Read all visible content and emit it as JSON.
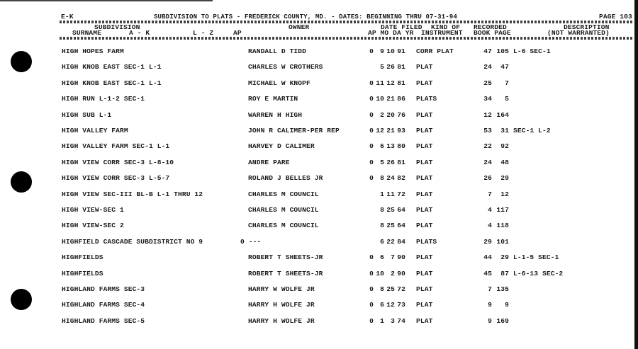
{
  "header": {
    "section": "E-K",
    "title": "SUBDIVISION TO PLATS - FREDERICK COUNTY, MD. - DATES: BEGINNING THRU 07-31-94",
    "page": "PAGE 103"
  },
  "columns": {
    "subdivision": "SUBDIVISION",
    "surname": "SURNAME",
    "a_k": "A - K",
    "l_z": "L - Z",
    "ap": "AP",
    "owner": "OWNER",
    "date_filed": "DATE FILED",
    "ap_mo_da_yr": "AP MO DA YR",
    "kind_of": "KIND OF",
    "instrument": "INSTRUMENT",
    "recorded": "RECORDED",
    "book_page": "BOOK PAGE",
    "description": "DESCRIPTION",
    "not_warranted": "(NOT WARRANTED)"
  },
  "rows": [
    {
      "name": "HIGH HOPES FARM",
      "ap1": "",
      "owner": "RANDALL D TIDD",
      "ap": "0",
      "mo": "9",
      "da": "10",
      "yr": "91",
      "kind": "CORR PLAT",
      "book": "47",
      "pg": "105",
      "desc": "L-6 SEC-1"
    },
    {
      "name": "HIGH KNOB EAST SEC-1 L-1",
      "ap1": "",
      "owner": "CHARLES W CROTHERS",
      "ap": "",
      "mo": "5",
      "da": "26",
      "yr": "81",
      "kind": "PLAT",
      "book": "24",
      "pg": "47",
      "desc": ""
    },
    {
      "name": "HIGH KNOB EAST SEC-1 L-1",
      "ap1": "",
      "owner": "MICHAEL W KNOPF",
      "ap": "0",
      "mo": "11",
      "da": "12",
      "yr": "81",
      "kind": "PLAT",
      "book": "25",
      "pg": "7",
      "desc": ""
    },
    {
      "name": "HIGH RUN L-1-2 SEC-1",
      "ap1": "",
      "owner": "ROY E MARTIN",
      "ap": "0",
      "mo": "10",
      "da": "21",
      "yr": "86",
      "kind": "PLATS",
      "book": "34",
      "pg": "5",
      "desc": ""
    },
    {
      "name": "HIGH SUB L-1",
      "ap1": "",
      "owner": "WARREN H HIGH",
      "ap": "0",
      "mo": "2",
      "da": "20",
      "yr": "76",
      "kind": "PLAT",
      "book": "12",
      "pg": "164",
      "desc": ""
    },
    {
      "name": "HIGH VALLEY FARM",
      "ap1": "",
      "owner": "JOHN R CALIMER-PER REP",
      "ap": "0",
      "mo": "12",
      "da": "21",
      "yr": "93",
      "kind": "PLAT",
      "book": "53",
      "pg": "31",
      "desc": "SEC-1 L-2"
    },
    {
      "name": "HIGH VALLEY FARM SEC-1 L-1",
      "ap1": "",
      "owner": "HARVEY D CALIMER",
      "ap": "0",
      "mo": "6",
      "da": "13",
      "yr": "80",
      "kind": "PLAT",
      "book": "22",
      "pg": "92",
      "desc": ""
    },
    {
      "name": "HIGH VIEW CORR SEC-3 L-8-10",
      "ap1": "",
      "owner": "ANDRE PARE",
      "ap": "0",
      "mo": "5",
      "da": "26",
      "yr": "81",
      "kind": "PLAT",
      "book": "24",
      "pg": "48",
      "desc": ""
    },
    {
      "name": "HIGH VIEW CORR SEC-3 L-5-7",
      "ap1": "",
      "owner": "ROLAND J BELLES JR",
      "ap": "0",
      "mo": "8",
      "da": "24",
      "yr": "82",
      "kind": "PLAT",
      "book": "26",
      "pg": "29",
      "desc": ""
    },
    {
      "name": "HIGH VIEW SEC-III BL-B L-1 THRU 12",
      "ap1": "",
      "owner": "CHARLES M COUNCIL",
      "ap": "",
      "mo": "1",
      "da": "11",
      "yr": "72",
      "kind": "PLAT",
      "book": "7",
      "pg": "12",
      "desc": ""
    },
    {
      "name": "HIGH VIEW-SEC 1",
      "ap1": "",
      "owner": "CHARLES M COUNCIL",
      "ap": "",
      "mo": "8",
      "da": "25",
      "yr": "64",
      "kind": "PLAT",
      "book": "4",
      "pg": "117",
      "desc": ""
    },
    {
      "name": "HIGH VIEW-SEC 2",
      "ap1": "",
      "owner": "CHARLES M COUNCIL",
      "ap": "",
      "mo": "8",
      "da": "25",
      "yr": "64",
      "kind": "PLAT",
      "book": "4",
      "pg": "118",
      "desc": ""
    },
    {
      "name": "HIGHFIELD CASCADE SUBDISTRICT NO 9",
      "ap1": "0 ---",
      "owner": "",
      "ap": "",
      "mo": "6",
      "da": "22",
      "yr": "84",
      "kind": "PLATS",
      "book": "29",
      "pg": "101",
      "desc": ""
    },
    {
      "name": "HIGHFIELDS",
      "ap1": "",
      "owner": "ROBERT T SHEETS-JR",
      "ap": "0",
      "mo": "6",
      "da": "7",
      "yr": "90",
      "kind": "PLAT",
      "book": "44",
      "pg": "29",
      "desc": "L-1-5 SEC-1"
    },
    {
      "name": "HIGHFIELDS",
      "ap1": "",
      "owner": "ROBERT T SHEETS-JR",
      "ap": "0",
      "mo": "10",
      "da": "2",
      "yr": "90",
      "kind": "PLAT",
      "book": "45",
      "pg": "87",
      "desc": "L-6-13 SEC-2"
    },
    {
      "name": "HIGHLAND FARMS SEC-3",
      "ap1": "",
      "owner": "HARRY W WOLFE JR",
      "ap": "0",
      "mo": "8",
      "da": "25",
      "yr": "72",
      "kind": "PLAT",
      "book": "7",
      "pg": "135",
      "desc": ""
    },
    {
      "name": "HIGHLAND FARMS SEC-4",
      "ap1": "",
      "owner": "HARRY H WOLFE JR",
      "ap": "0",
      "mo": "6",
      "da": "12",
      "yr": "73",
      "kind": "PLAT",
      "book": "9",
      "pg": "9",
      "desc": ""
    },
    {
      "name": "HIGHLAND FARMS SEC-5",
      "ap1": "",
      "owner": "HARRY H WOLFE JR",
      "ap": "0",
      "mo": "1",
      "da": "3",
      "yr": "74",
      "kind": "PLAT",
      "book": "9",
      "pg": "169",
      "desc": ""
    }
  ]
}
